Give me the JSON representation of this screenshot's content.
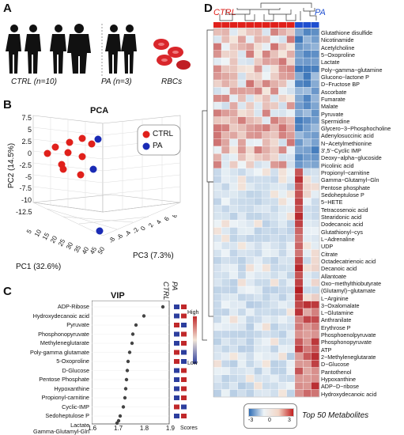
{
  "panels": {
    "a": "A",
    "b": "B",
    "c": "C",
    "d": "D"
  },
  "panel_a": {
    "ctrl_label": "CTRL (n=10)",
    "pa_label": "PA (n=3)",
    "rbc_label": "RBCs",
    "silhouette_color": "#111111",
    "rbc_color": "#d9262b"
  },
  "pca": {
    "title": "PCA",
    "pc1_label": "PC1 (32.6%)",
    "pc2_label": "PC2 (14.5%)",
    "pc3_label": "PC3 (7.3%)",
    "pc2_ticks": [
      "7.5",
      "5",
      "2.5",
      "0",
      "-2.5",
      "-5",
      "-7.5",
      "-10",
      "-12.5"
    ],
    "pc1_ticks": [
      "50",
      "45",
      "40",
      "35",
      "30",
      "25",
      "20",
      "15",
      "10",
      "5"
    ],
    "pc3_ticks": [
      "-8",
      "-6",
      "-4",
      "-2",
      "0",
      "2",
      "4",
      "6",
      "8"
    ],
    "legend": [
      {
        "name": "CTRL",
        "color": "#e0201b"
      },
      {
        "name": "PA",
        "color": "#1a2bb5"
      }
    ]
  },
  "vip": {
    "title": "VIP",
    "xlabel": "Scores",
    "x_ticks": [
      "1.6",
      "1.7",
      "1.8",
      "1.9"
    ],
    "col_ctrl": "CTRL",
    "col_pa": "PA",
    "legend_high": "High",
    "legend_low": "Low",
    "metabolites": [
      "ADP-Ribose",
      "Hydroxydecanoic acid",
      "Pyruvate",
      "Phosphonopyruvate",
      "Methyleneglutarate",
      "Poly-gamma glutamate",
      "5-Oxoproline",
      "D-Glucose",
      "Pentose Phosphate",
      "Hypoxanthine",
      "Propionyl-carnitine",
      "Cyclic-IMP",
      "Sedoheptulose P",
      "Lactate",
      "Gamma-Glutamyl-Gln"
    ]
  },
  "heatmap": {
    "ctrl_label": "CTRL",
    "pa_label": "PA",
    "ctrl_color": "#e0201b",
    "pa_color": "#1f4fd0",
    "scale_min": "-3",
    "scale_mid": "0",
    "scale_max": "3",
    "footer": "Top 50 Metabolites",
    "rows": [
      "Glutathione disulfide",
      "Nicotinamide",
      "Acetylcholine",
      "5−Oxoproline",
      "Lactate",
      "Poly−gamma−glutamine",
      "Glucono−lactone P",
      "D−Fructose BP",
      "Ascorbate",
      "Fumarate",
      "Malate",
      "Pyruvate",
      "Spermidine",
      "Glycero−3−Phosphocholine",
      "Adenylosuccinic acid",
      "N−Acetylmethionine",
      "3',5'−Cyclic IMP",
      "Deoxy−alpha−glucoside",
      "Picolinic acid",
      "Propionyl−carnitine",
      "Gamma−Glutamyl−Gln",
      "Pentose phosphate",
      "Sedoheptulose P",
      "5−HETE",
      "Tetracosenoic acid",
      "Stearidonic acid",
      "Dodecanoic acid",
      "Glutathionyl−cys",
      "L−Adrenaline",
      "UDP",
      "Citrate",
      "Octadecatrienoic acid",
      "Decanoic acid",
      "Allantoate",
      "Oxo−methylthiobutyrate",
      "(Glutamyl)−glutamate",
      "L−Arginine",
      "3−Oxalomalate",
      "L−Glutamine",
      "Anthranilate",
      "Erythrose P",
      "Phosphoenolpyruvate",
      "Phosphonopyruvate",
      "ATP",
      "2−Methyleneglutarate",
      "D−Glucose",
      "Pantothenol",
      "Hypoxanthine",
      "ADP−D−ribose",
      "Hydroxydecanoic acid"
    ]
  }
}
